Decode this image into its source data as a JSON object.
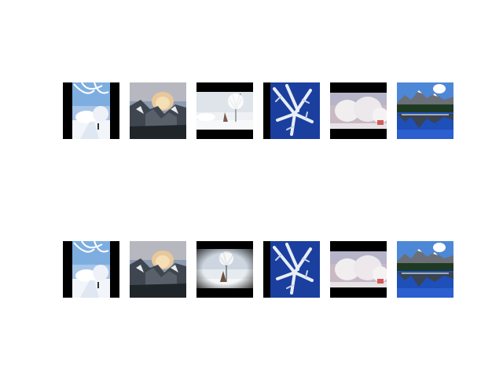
{
  "grid": {
    "rows": [
      {
        "id": "top",
        "thumbnails": [
          {
            "subject": "snowy-forest-path",
            "letterbox": "pillarbox"
          },
          {
            "subject": "half-dome-winter",
            "letterbox": "none"
          },
          {
            "subject": "frosted-tree-field",
            "letterbox": "letterbox"
          },
          {
            "subject": "ice-crystals-blue",
            "letterbox": "pillarbox-left"
          },
          {
            "subject": "frosted-trees-pink-sky",
            "letterbox": "letterbox"
          },
          {
            "subject": "alpine-lake-reflection",
            "letterbox": "none"
          }
        ]
      },
      {
        "id": "bottom",
        "thumbnails": [
          {
            "subject": "snowy-forest-path",
            "letterbox": "pillarbox"
          },
          {
            "subject": "half-dome-winter",
            "letterbox": "none"
          },
          {
            "subject": "frosted-tree-field-vignette",
            "letterbox": "letterbox"
          },
          {
            "subject": "ice-crystals-blue",
            "letterbox": "pillarbox-left"
          },
          {
            "subject": "frosted-trees-pink-sky",
            "letterbox": "letterbox"
          },
          {
            "subject": "alpine-lake-reflection",
            "letterbox": "none"
          }
        ]
      }
    ]
  },
  "colors": {
    "background": "#ffffff",
    "frame": "#000000",
    "sky_blue": "#6fa3dc",
    "snow": "#eef3f8",
    "lake_blue": "#1f4fb8",
    "crystal_blue": "#1b3f9e"
  }
}
